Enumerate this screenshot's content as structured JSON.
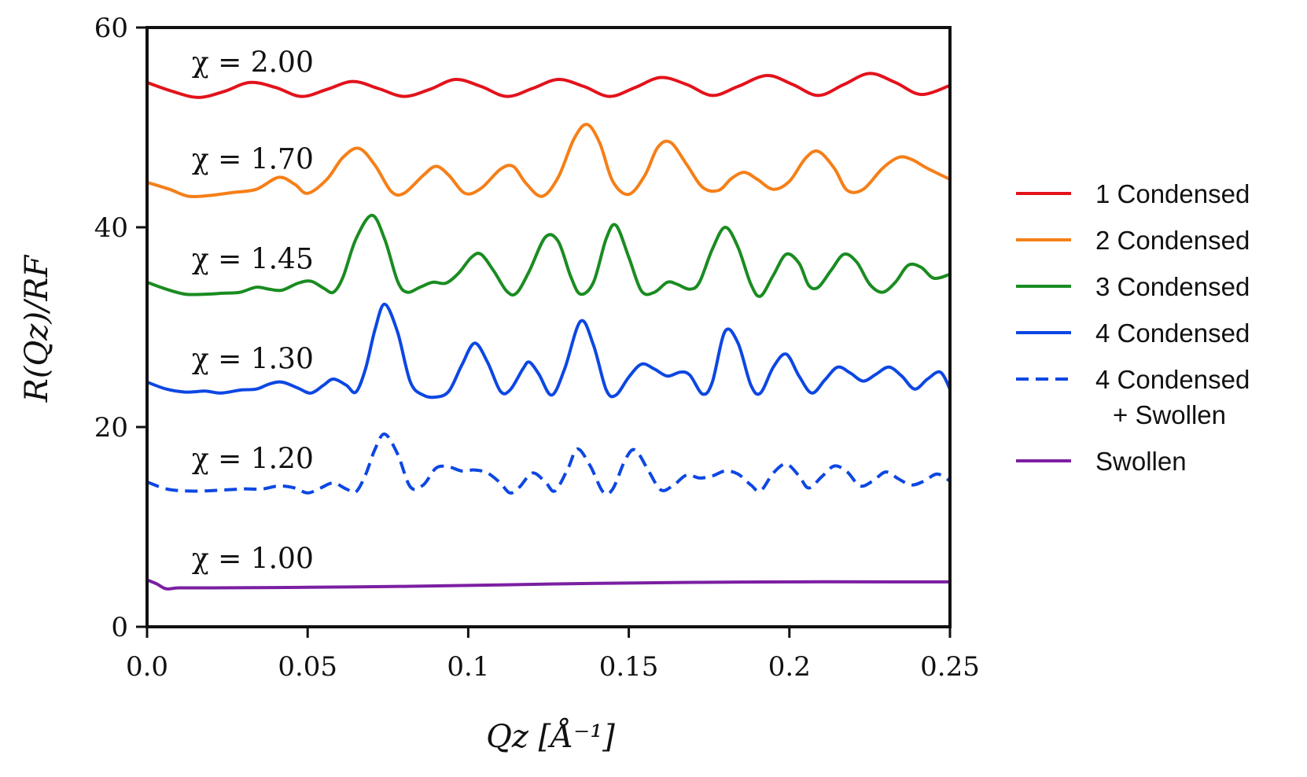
{
  "chart_data": {
    "type": "line",
    "xlabel": "Qz [Å⁻¹]",
    "ylabel": "R(Qz)/RF",
    "xlim": [
      0,
      0.25
    ],
    "ylim": [
      0,
      60
    ],
    "xticks": [
      0.0,
      0.05,
      0.1,
      0.15,
      0.2,
      0.25
    ],
    "xtick_labels": [
      "0.0",
      "0.05",
      "0.1",
      "0.15",
      "0.2",
      "0.25"
    ],
    "yticks": [
      0,
      20,
      40,
      60
    ],
    "ytick_labels": [
      "0",
      "20",
      "40",
      "60"
    ],
    "grid": false,
    "legend_position": "right",
    "series": [
      {
        "name": "1 Condensed",
        "color": "#e3121b",
        "dash": "solid",
        "annotation": "χ = 2.00",
        "annotation_x": 0.01,
        "annotation_y": 56.5,
        "points": [
          [
            0.0,
            54.5
          ],
          [
            0.008,
            53.6
          ],
          [
            0.016,
            53.0
          ],
          [
            0.024,
            53.6
          ],
          [
            0.032,
            54.5
          ],
          [
            0.04,
            54.0
          ],
          [
            0.048,
            53.1
          ],
          [
            0.056,
            53.8
          ],
          [
            0.064,
            54.6
          ],
          [
            0.072,
            53.9
          ],
          [
            0.08,
            53.1
          ],
          [
            0.088,
            53.8
          ],
          [
            0.096,
            54.8
          ],
          [
            0.104,
            54.1
          ],
          [
            0.112,
            53.1
          ],
          [
            0.12,
            53.9
          ],
          [
            0.128,
            54.8
          ],
          [
            0.136,
            54.1
          ],
          [
            0.144,
            53.1
          ],
          [
            0.152,
            54.0
          ],
          [
            0.16,
            55.0
          ],
          [
            0.168,
            54.3
          ],
          [
            0.176,
            53.2
          ],
          [
            0.184,
            54.1
          ],
          [
            0.193,
            55.2
          ],
          [
            0.201,
            54.3
          ],
          [
            0.209,
            53.2
          ],
          [
            0.217,
            54.3
          ],
          [
            0.225,
            55.4
          ],
          [
            0.233,
            54.5
          ],
          [
            0.241,
            53.3
          ],
          [
            0.25,
            54.2
          ]
        ]
      },
      {
        "name": "2 Condensed",
        "color": "#f57f17",
        "dash": "solid",
        "annotation": "χ = 1.70",
        "annotation_x": 0.01,
        "annotation_y": 46.8,
        "points": [
          [
            0.0,
            44.5
          ],
          [
            0.007,
            43.8
          ],
          [
            0.013,
            43.1
          ],
          [
            0.02,
            43.2
          ],
          [
            0.027,
            43.5
          ],
          [
            0.034,
            43.8
          ],
          [
            0.041,
            45.0
          ],
          [
            0.046,
            44.3
          ],
          [
            0.05,
            43.4
          ],
          [
            0.056,
            44.8
          ],
          [
            0.061,
            47.0
          ],
          [
            0.066,
            47.9
          ],
          [
            0.071,
            46.2
          ],
          [
            0.076,
            43.6
          ],
          [
            0.08,
            43.4
          ],
          [
            0.086,
            45.2
          ],
          [
            0.09,
            46.1
          ],
          [
            0.094,
            45.2
          ],
          [
            0.099,
            43.4
          ],
          [
            0.104,
            43.9
          ],
          [
            0.11,
            45.8
          ],
          [
            0.114,
            46.1
          ],
          [
            0.118,
            44.4
          ],
          [
            0.123,
            43.1
          ],
          [
            0.128,
            45.0
          ],
          [
            0.133,
            48.9
          ],
          [
            0.137,
            50.3
          ],
          [
            0.141,
            48.4
          ],
          [
            0.145,
            44.6
          ],
          [
            0.15,
            43.3
          ],
          [
            0.155,
            45.2
          ],
          [
            0.159,
            48.0
          ],
          [
            0.163,
            48.5
          ],
          [
            0.168,
            46.3
          ],
          [
            0.173,
            44.0
          ],
          [
            0.178,
            43.7
          ],
          [
            0.182,
            44.9
          ],
          [
            0.186,
            45.5
          ],
          [
            0.19,
            44.8
          ],
          [
            0.195,
            43.8
          ],
          [
            0.2,
            44.6
          ],
          [
            0.205,
            46.9
          ],
          [
            0.209,
            47.6
          ],
          [
            0.214,
            45.9
          ],
          [
            0.218,
            43.7
          ],
          [
            0.223,
            43.8
          ],
          [
            0.229,
            45.9
          ],
          [
            0.234,
            47.0
          ],
          [
            0.238,
            46.8
          ],
          [
            0.243,
            45.9
          ],
          [
            0.25,
            44.8
          ]
        ]
      },
      {
        "name": "3 Condensed",
        "color": "#1a8c21",
        "dash": "solid",
        "annotation": "χ = 1.45",
        "annotation_x": 0.01,
        "annotation_y": 36.8,
        "points": [
          [
            0.0,
            34.5
          ],
          [
            0.006,
            33.8
          ],
          [
            0.012,
            33.3
          ],
          [
            0.018,
            33.3
          ],
          [
            0.024,
            33.4
          ],
          [
            0.029,
            33.5
          ],
          [
            0.034,
            34.0
          ],
          [
            0.038,
            33.8
          ],
          [
            0.042,
            33.7
          ],
          [
            0.047,
            34.4
          ],
          [
            0.051,
            34.6
          ],
          [
            0.055,
            33.9
          ],
          [
            0.058,
            33.5
          ],
          [
            0.061,
            35.0
          ],
          [
            0.065,
            38.8
          ],
          [
            0.07,
            41.2
          ],
          [
            0.074,
            38.8
          ],
          [
            0.078,
            34.6
          ],
          [
            0.081,
            33.5
          ],
          [
            0.085,
            34.0
          ],
          [
            0.089,
            34.5
          ],
          [
            0.093,
            34.4
          ],
          [
            0.097,
            35.4
          ],
          [
            0.101,
            37.0
          ],
          [
            0.104,
            37.3
          ],
          [
            0.108,
            35.6
          ],
          [
            0.112,
            33.6
          ],
          [
            0.115,
            33.4
          ],
          [
            0.119,
            35.6
          ],
          [
            0.124,
            39.0
          ],
          [
            0.128,
            38.6
          ],
          [
            0.132,
            35.0
          ],
          [
            0.135,
            33.3
          ],
          [
            0.139,
            34.5
          ],
          [
            0.143,
            38.9
          ],
          [
            0.146,
            40.2
          ],
          [
            0.15,
            37.0
          ],
          [
            0.154,
            33.6
          ],
          [
            0.158,
            33.5
          ],
          [
            0.162,
            34.5
          ],
          [
            0.165,
            34.3
          ],
          [
            0.169,
            33.8
          ],
          [
            0.172,
            34.5
          ],
          [
            0.176,
            37.8
          ],
          [
            0.18,
            40.0
          ],
          [
            0.184,
            38.0
          ],
          [
            0.188,
            34.3
          ],
          [
            0.191,
            33.1
          ],
          [
            0.195,
            35.2
          ],
          [
            0.199,
            37.3
          ],
          [
            0.203,
            36.4
          ],
          [
            0.206,
            34.2
          ],
          [
            0.209,
            34.0
          ],
          [
            0.213,
            35.7
          ],
          [
            0.217,
            37.3
          ],
          [
            0.221,
            36.5
          ],
          [
            0.225,
            34.3
          ],
          [
            0.229,
            33.5
          ],
          [
            0.233,
            34.5
          ],
          [
            0.237,
            36.2
          ],
          [
            0.241,
            36.0
          ],
          [
            0.245,
            34.9
          ],
          [
            0.25,
            35.3
          ]
        ]
      },
      {
        "name": "4 Condensed",
        "color": "#0d47e3",
        "dash": "solid",
        "annotation": "χ = 1.30",
        "annotation_x": 0.01,
        "annotation_y": 26.8,
        "points": [
          [
            0.0,
            24.5
          ],
          [
            0.006,
            23.8
          ],
          [
            0.012,
            23.5
          ],
          [
            0.018,
            23.6
          ],
          [
            0.023,
            23.4
          ],
          [
            0.029,
            23.7
          ],
          [
            0.034,
            23.8
          ],
          [
            0.038,
            24.3
          ],
          [
            0.042,
            24.5
          ],
          [
            0.047,
            23.9
          ],
          [
            0.051,
            23.4
          ],
          [
            0.055,
            24.2
          ],
          [
            0.058,
            24.8
          ],
          [
            0.062,
            24.2
          ],
          [
            0.065,
            23.5
          ],
          [
            0.068,
            25.8
          ],
          [
            0.071,
            29.8
          ],
          [
            0.074,
            32.3
          ],
          [
            0.078,
            29.5
          ],
          [
            0.082,
            24.5
          ],
          [
            0.086,
            23.2
          ],
          [
            0.09,
            23.0
          ],
          [
            0.094,
            23.6
          ],
          [
            0.098,
            26.2
          ],
          [
            0.102,
            28.4
          ],
          [
            0.106,
            26.5
          ],
          [
            0.11,
            23.6
          ],
          [
            0.113,
            23.7
          ],
          [
            0.117,
            25.8
          ],
          [
            0.119,
            26.5
          ],
          [
            0.122,
            25.3
          ],
          [
            0.126,
            23.2
          ],
          [
            0.13,
            25.8
          ],
          [
            0.135,
            30.6
          ],
          [
            0.139,
            28.2
          ],
          [
            0.143,
            23.7
          ],
          [
            0.146,
            23.2
          ],
          [
            0.15,
            25.0
          ],
          [
            0.154,
            26.3
          ],
          [
            0.158,
            25.8
          ],
          [
            0.162,
            25.1
          ],
          [
            0.166,
            25.5
          ],
          [
            0.169,
            25.2
          ],
          [
            0.173,
            23.3
          ],
          [
            0.176,
            24.5
          ],
          [
            0.18,
            29.6
          ],
          [
            0.184,
            28.4
          ],
          [
            0.188,
            24.2
          ],
          [
            0.191,
            23.4
          ],
          [
            0.195,
            26.0
          ],
          [
            0.199,
            27.3
          ],
          [
            0.203,
            25.1
          ],
          [
            0.207,
            23.4
          ],
          [
            0.211,
            24.7
          ],
          [
            0.215,
            26.0
          ],
          [
            0.219,
            25.4
          ],
          [
            0.223,
            24.6
          ],
          [
            0.227,
            25.3
          ],
          [
            0.231,
            26.0
          ],
          [
            0.235,
            25.1
          ],
          [
            0.239,
            23.8
          ],
          [
            0.243,
            24.8
          ],
          [
            0.247,
            25.5
          ],
          [
            0.25,
            23.8
          ]
        ]
      },
      {
        "name": "4 Condensed + Swollen",
        "legend_lines": [
          "4 Condensed",
          "+ Swollen"
        ],
        "color": "#0d47e3",
        "dash": "dashed",
        "annotation": "χ = 1.20",
        "annotation_x": 0.01,
        "annotation_y": 16.8,
        "points": [
          [
            0.0,
            14.5
          ],
          [
            0.006,
            13.8
          ],
          [
            0.012,
            13.6
          ],
          [
            0.018,
            13.6
          ],
          [
            0.024,
            13.7
          ],
          [
            0.03,
            13.8
          ],
          [
            0.036,
            13.8
          ],
          [
            0.041,
            14.1
          ],
          [
            0.046,
            13.9
          ],
          [
            0.05,
            13.4
          ],
          [
            0.054,
            13.9
          ],
          [
            0.058,
            14.4
          ],
          [
            0.062,
            13.8
          ],
          [
            0.065,
            13.5
          ],
          [
            0.068,
            15.2
          ],
          [
            0.071,
            17.8
          ],
          [
            0.074,
            19.3
          ],
          [
            0.078,
            17.3
          ],
          [
            0.082,
            14.0
          ],
          [
            0.086,
            14.2
          ],
          [
            0.09,
            15.9
          ],
          [
            0.094,
            16.0
          ],
          [
            0.098,
            15.6
          ],
          [
            0.102,
            15.7
          ],
          [
            0.106,
            15.4
          ],
          [
            0.11,
            14.4
          ],
          [
            0.113,
            13.4
          ],
          [
            0.116,
            14.0
          ],
          [
            0.12,
            15.4
          ],
          [
            0.124,
            14.5
          ],
          [
            0.127,
            13.6
          ],
          [
            0.131,
            15.8
          ],
          [
            0.134,
            17.8
          ],
          [
            0.138,
            16.1
          ],
          [
            0.142,
            13.5
          ],
          [
            0.145,
            13.8
          ],
          [
            0.149,
            16.8
          ],
          [
            0.152,
            17.7
          ],
          [
            0.156,
            15.7
          ],
          [
            0.16,
            13.7
          ],
          [
            0.164,
            14.2
          ],
          [
            0.168,
            15.2
          ],
          [
            0.172,
            14.9
          ],
          [
            0.176,
            15.1
          ],
          [
            0.18,
            15.6
          ],
          [
            0.184,
            15.3
          ],
          [
            0.188,
            14.2
          ],
          [
            0.191,
            13.6
          ],
          [
            0.195,
            15.4
          ],
          [
            0.199,
            16.3
          ],
          [
            0.203,
            15.1
          ],
          [
            0.206,
            13.9
          ],
          [
            0.21,
            15.0
          ],
          [
            0.214,
            16.1
          ],
          [
            0.218,
            15.5
          ],
          [
            0.222,
            14.1
          ],
          [
            0.226,
            14.6
          ],
          [
            0.23,
            15.5
          ],
          [
            0.234,
            14.8
          ],
          [
            0.238,
            14.2
          ],
          [
            0.242,
            14.6
          ],
          [
            0.246,
            15.3
          ],
          [
            0.25,
            14.6
          ]
        ]
      },
      {
        "name": "Swollen",
        "color": "#7b1fa2",
        "dash": "solid",
        "annotation": "χ = 1.00",
        "annotation_x": 0.01,
        "annotation_y": 6.8,
        "points": [
          [
            0.0,
            4.7
          ],
          [
            0.003,
            4.3
          ],
          [
            0.006,
            3.8
          ],
          [
            0.01,
            3.9
          ],
          [
            0.02,
            3.9
          ],
          [
            0.05,
            3.95
          ],
          [
            0.08,
            4.05
          ],
          [
            0.11,
            4.2
          ],
          [
            0.14,
            4.35
          ],
          [
            0.17,
            4.45
          ],
          [
            0.2,
            4.5
          ],
          [
            0.23,
            4.5
          ],
          [
            0.25,
            4.5
          ]
        ]
      }
    ]
  }
}
